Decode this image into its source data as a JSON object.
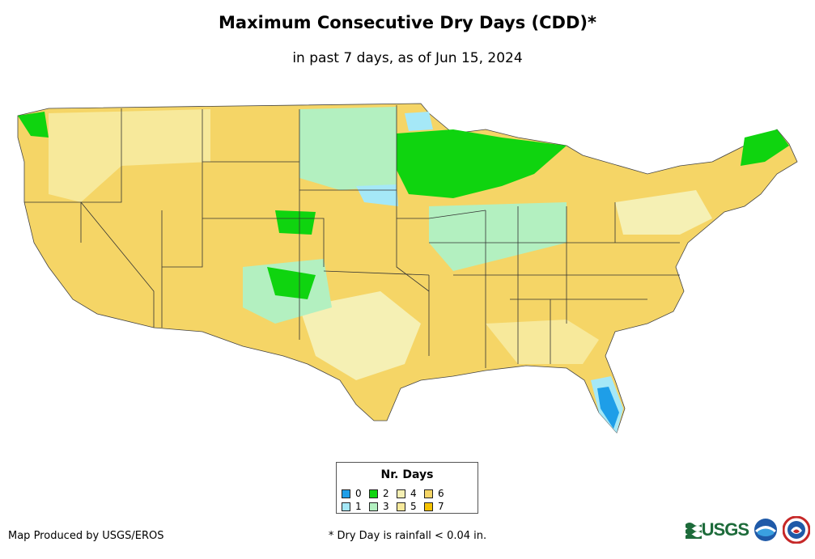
{
  "map": {
    "title": "Maximum Consecutive Dry Days (CDD)*",
    "subtitle": "in past 7 days, as of Jun 15, 2024"
  },
  "legend": {
    "title": "Nr. Days",
    "items": [
      {
        "label": "0",
        "color": "#1e9ee8"
      },
      {
        "label": "2",
        "color": "#0fd40f"
      },
      {
        "label": "4",
        "color": "#f5f0b4"
      },
      {
        "label": "6",
        "color": "#f5d566"
      },
      {
        "label": "1",
        "color": "#a5e8f7"
      },
      {
        "label": "3",
        "color": "#b3f0c0"
      },
      {
        "label": "5",
        "color": "#f7e99b"
      },
      {
        "label": "7",
        "color": "#f5c200"
      }
    ]
  },
  "footer": {
    "credit": "Map Produced by USGS/EROS",
    "footnote": "* Dry Day is rainfall < 0.04 in.",
    "logos": [
      "usgs-logo",
      "noaa-logo",
      "nws-logo"
    ]
  }
}
